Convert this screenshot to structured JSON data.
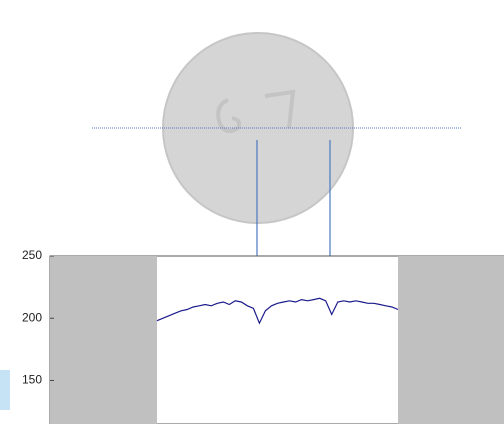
{
  "chart_data": {
    "type": "line",
    "values": [
      198,
      200,
      202,
      204,
      206,
      207,
      209,
      210,
      211,
      210,
      212,
      213,
      211,
      214,
      213,
      210,
      208,
      196,
      206,
      210,
      212,
      213,
      214,
      213,
      215,
      214,
      215,
      216,
      214,
      203,
      213,
      214,
      213,
      214,
      213,
      212,
      212,
      211,
      210,
      209,
      207
    ],
    "color": "#1a1a8c",
    "ylim": [
      115,
      250
    ],
    "yticks": [
      150,
      200,
      250
    ]
  }
}
